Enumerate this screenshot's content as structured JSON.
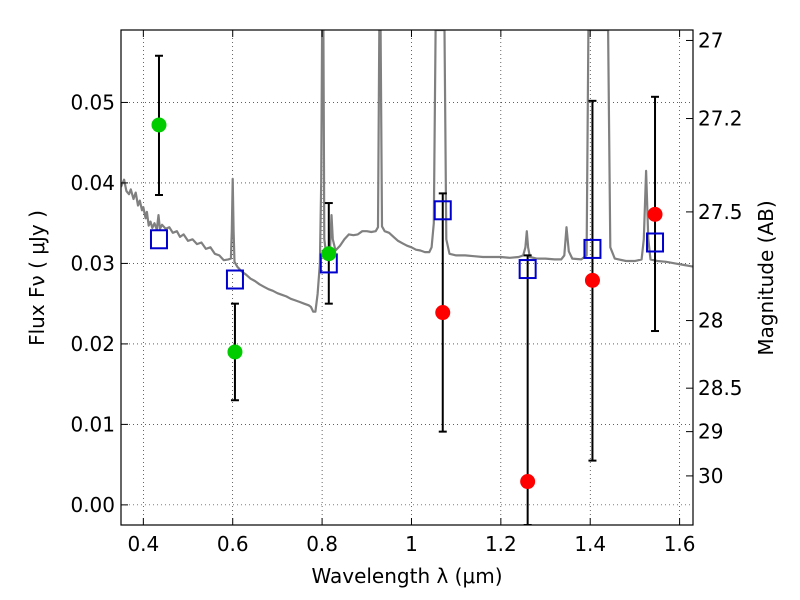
{
  "chart_data": {
    "type": "scatter",
    "xlabel": "Wavelength  λ (μm)",
    "ylabel_left": "Flux  Fν  ( μJy )",
    "ylabel_right": "Magnitude (AB)",
    "xlim": [
      0.35,
      1.63
    ],
    "ylim": [
      -0.0025,
      0.059
    ],
    "grid": true,
    "x_ticks": [
      0.4,
      0.6,
      0.8,
      1.0,
      1.2,
      1.4,
      1.6
    ],
    "x_tick_labels": [
      "0.4",
      "0.6",
      "0.8",
      "1",
      "1.2",
      "1.4",
      "1.6"
    ],
    "y_ticks": [
      0.0,
      0.01,
      0.02,
      0.03,
      0.04,
      0.05
    ],
    "y_tick_labels": [
      "0.00",
      "0.01",
      "0.02",
      "0.03",
      "0.04",
      "0.05"
    ],
    "right_ticks": [
      {
        "label": "27",
        "flux": 0.0577
      },
      {
        "label": "27.2",
        "flux": 0.048
      },
      {
        "label": "27.5",
        "flux": 0.0364
      },
      {
        "label": "28",
        "flux": 0.0229
      },
      {
        "label": "28.5",
        "flux": 0.0145
      },
      {
        "label": "29",
        "flux": 0.0091
      },
      {
        "label": "30",
        "flux": 0.0036
      }
    ],
    "model_spectrum": {
      "color": "#808080",
      "points": [
        [
          0.35,
          0.0395
        ],
        [
          0.357,
          0.0404
        ],
        [
          0.362,
          0.039
        ],
        [
          0.368,
          0.0386
        ],
        [
          0.372,
          0.0392
        ],
        [
          0.378,
          0.038
        ],
        [
          0.383,
          0.0388
        ],
        [
          0.388,
          0.0372
        ],
        [
          0.392,
          0.0378
        ],
        [
          0.397,
          0.0366
        ],
        [
          0.4,
          0.037
        ],
        [
          0.405,
          0.0356
        ],
        [
          0.408,
          0.0364
        ],
        [
          0.412,
          0.0347
        ],
        [
          0.416,
          0.0352
        ],
        [
          0.42,
          0.0344
        ],
        [
          0.425,
          0.035
        ],
        [
          0.43,
          0.0342
        ],
        [
          0.434,
          0.036
        ],
        [
          0.437,
          0.0343
        ],
        [
          0.442,
          0.0348
        ],
        [
          0.45,
          0.0343
        ],
        [
          0.458,
          0.0345
        ],
        [
          0.466,
          0.0338
        ],
        [
          0.475,
          0.034
        ],
        [
          0.482,
          0.0333
        ],
        [
          0.49,
          0.0336
        ],
        [
          0.5,
          0.0328
        ],
        [
          0.51,
          0.033
        ],
        [
          0.52,
          0.0324
        ],
        [
          0.53,
          0.0326
        ],
        [
          0.54,
          0.0318
        ],
        [
          0.55,
          0.032
        ],
        [
          0.56,
          0.0312
        ],
        [
          0.57,
          0.031
        ],
        [
          0.58,
          0.0304
        ],
        [
          0.59,
          0.0305
        ],
        [
          0.596,
          0.0306
        ],
        [
          0.598,
          0.034
        ],
        [
          0.6,
          0.0405
        ],
        [
          0.602,
          0.034
        ],
        [
          0.604,
          0.0302
        ],
        [
          0.61,
          0.0296
        ],
        [
          0.62,
          0.029
        ],
        [
          0.63,
          0.0286
        ],
        [
          0.64,
          0.0281
        ],
        [
          0.65,
          0.0278
        ],
        [
          0.66,
          0.0274
        ],
        [
          0.67,
          0.0271
        ],
        [
          0.68,
          0.0268
        ],
        [
          0.69,
          0.0266
        ],
        [
          0.7,
          0.0263
        ],
        [
          0.71,
          0.0261
        ],
        [
          0.72,
          0.0259
        ],
        [
          0.73,
          0.0256
        ],
        [
          0.74,
          0.0254
        ],
        [
          0.75,
          0.0252
        ],
        [
          0.76,
          0.025
        ],
        [
          0.77,
          0.0248
        ],
        [
          0.775,
          0.0246
        ],
        [
          0.78,
          0.024
        ],
        [
          0.785,
          0.024
        ],
        [
          0.79,
          0.0262
        ],
        [
          0.795,
          0.03
        ],
        [
          0.798,
          0.04
        ],
        [
          0.8,
          0.059
        ],
        [
          0.803,
          0.059
        ],
        [
          0.805,
          0.033
        ],
        [
          0.81,
          0.0308
        ],
        [
          0.815,
          0.0306
        ],
        [
          0.818,
          0.032
        ],
        [
          0.821,
          0.036
        ],
        [
          0.824,
          0.033
        ],
        [
          0.83,
          0.0316
        ],
        [
          0.84,
          0.0322
        ],
        [
          0.85,
          0.033
        ],
        [
          0.86,
          0.0336
        ],
        [
          0.87,
          0.0335
        ],
        [
          0.88,
          0.0336
        ],
        [
          0.89,
          0.034
        ],
        [
          0.9,
          0.034
        ],
        [
          0.91,
          0.0339
        ],
        [
          0.92,
          0.034
        ],
        [
          0.925,
          0.0345
        ],
        [
          0.928,
          0.059
        ],
        [
          0.931,
          0.059
        ],
        [
          0.934,
          0.0346
        ],
        [
          0.94,
          0.034
        ],
        [
          0.95,
          0.0338
        ],
        [
          0.96,
          0.0333
        ],
        [
          0.97,
          0.0328
        ],
        [
          0.98,
          0.0325
        ],
        [
          0.99,
          0.0322
        ],
        [
          1.0,
          0.032
        ],
        [
          1.01,
          0.0317
        ],
        [
          1.02,
          0.0316
        ],
        [
          1.03,
          0.0314
        ],
        [
          1.04,
          0.0314
        ],
        [
          1.045,
          0.032
        ],
        [
          1.05,
          0.035
        ],
        [
          1.054,
          0.059
        ],
        [
          1.074,
          0.059
        ],
        [
          1.078,
          0.033
        ],
        [
          1.085,
          0.0312
        ],
        [
          1.1,
          0.031
        ],
        [
          1.12,
          0.031
        ],
        [
          1.14,
          0.0309
        ],
        [
          1.16,
          0.0308
        ],
        [
          1.18,
          0.0308
        ],
        [
          1.2,
          0.0308
        ],
        [
          1.22,
          0.0307
        ],
        [
          1.24,
          0.0308
        ],
        [
          1.25,
          0.031
        ],
        [
          1.255,
          0.032
        ],
        [
          1.258,
          0.034
        ],
        [
          1.261,
          0.032
        ],
        [
          1.265,
          0.0308
        ],
        [
          1.28,
          0.0306
        ],
        [
          1.3,
          0.0306
        ],
        [
          1.32,
          0.0305
        ],
        [
          1.335,
          0.0305
        ],
        [
          1.342,
          0.031
        ],
        [
          1.347,
          0.0345
        ],
        [
          1.352,
          0.0315
        ],
        [
          1.36,
          0.0306
        ],
        [
          1.38,
          0.0305
        ],
        [
          1.392,
          0.031
        ],
        [
          1.396,
          0.059
        ],
        [
          1.42,
          0.059
        ],
        [
          1.43,
          0.059
        ],
        [
          1.44,
          0.059
        ],
        [
          1.445,
          0.032
        ],
        [
          1.455,
          0.0306
        ],
        [
          1.48,
          0.0303
        ],
        [
          1.5,
          0.0303
        ],
        [
          1.515,
          0.0305
        ],
        [
          1.52,
          0.033
        ],
        [
          1.525,
          0.0415
        ],
        [
          1.53,
          0.033
        ],
        [
          1.535,
          0.0305
        ],
        [
          1.55,
          0.0303
        ],
        [
          1.57,
          0.0302
        ],
        [
          1.59,
          0.03
        ],
        [
          1.61,
          0.0298
        ],
        [
          1.63,
          0.0296
        ]
      ]
    },
    "model_bandpass": {
      "color": "#0000cc",
      "marker": "open-square",
      "points": [
        [
          0.435,
          0.033
        ],
        [
          0.605,
          0.028
        ],
        [
          0.815,
          0.03
        ],
        [
          1.07,
          0.0366
        ],
        [
          1.26,
          0.0293
        ],
        [
          1.405,
          0.0318
        ],
        [
          1.545,
          0.0326
        ]
      ]
    },
    "observed_detections": {
      "color": "#00cc00",
      "points": [
        {
          "x": 0.435,
          "y": 0.0472,
          "err_low": 0.0385,
          "err_high": 0.0558
        },
        {
          "x": 0.605,
          "y": 0.019,
          "err_low": 0.013,
          "err_high": 0.025
        },
        {
          "x": 0.815,
          "y": 0.0312,
          "err_low": 0.025,
          "err_high": 0.0375
        }
      ]
    },
    "observed_low_sn": {
      "color": "#ff0000",
      "points": [
        {
          "x": 1.07,
          "y": 0.0239,
          "err_low": 0.0091,
          "err_high": 0.0387
        },
        {
          "x": 1.26,
          "y": 0.0029,
          "err_low": -0.0025,
          "err_high": 0.031
        },
        {
          "x": 1.405,
          "y": 0.0279,
          "err_low": 0.0055,
          "err_high": 0.0502
        },
        {
          "x": 1.545,
          "y": 0.0361,
          "err_low": 0.0216,
          "err_high": 0.0507
        }
      ]
    }
  }
}
